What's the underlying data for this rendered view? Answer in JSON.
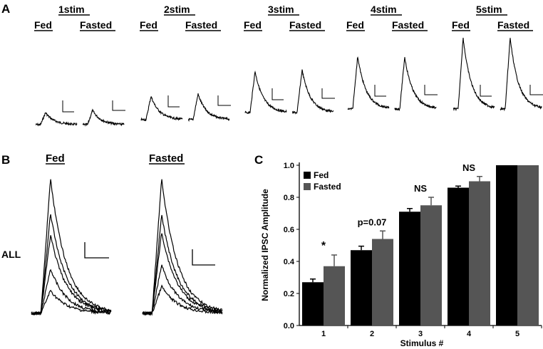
{
  "panels": {
    "a": {
      "letter": "A"
    },
    "b": {
      "letter": "B",
      "fed": "Fed",
      "fasted": "Fasted",
      "row_label": "ALL"
    },
    "c": {
      "letter": "C"
    }
  },
  "traces": {
    "groups": [
      {
        "title": "1stim",
        "fed": "Fed",
        "fasted": "Fasted",
        "peak_fed": 0.17,
        "peak_fasted": 0.2
      },
      {
        "title": "2stim",
        "fed": "Fed",
        "fasted": "Fasted",
        "peak_fed": 0.33,
        "peak_fasted": 0.36
      },
      {
        "title": "3stim",
        "fed": "Fed",
        "fasted": "Fasted",
        "peak_fed": 0.58,
        "peak_fasted": 0.6
      },
      {
        "title": "4stim",
        "fed": "Fed",
        "fasted": "Fasted",
        "peak_fed": 0.74,
        "peak_fasted": 0.73
      },
      {
        "title": "5stim",
        "fed": "Fed",
        "fasted": "Fasted",
        "peak_fed": 1.0,
        "peak_fasted": 1.0
      }
    ]
  },
  "chart_data": {
    "type": "bar",
    "title": "",
    "xlabel": "Stimulus #",
    "ylabel": "Normalized IPSC Amplitude",
    "categories": [
      "1",
      "2",
      "3",
      "4",
      "5"
    ],
    "ylim": [
      0,
      1.0
    ],
    "yticks": [
      "0.0",
      "0.2",
      "0.4",
      "0.6",
      "0.8",
      "1.0"
    ],
    "series": [
      {
        "name": "Fed",
        "color": "#000000",
        "values": [
          0.27,
          0.47,
          0.71,
          0.86,
          1.0
        ],
        "errors": [
          0.02,
          0.025,
          0.02,
          0.01,
          0.0
        ]
      },
      {
        "name": "Fasted",
        "color": "#555555",
        "values": [
          0.37,
          0.54,
          0.75,
          0.9,
          1.0
        ],
        "errors": [
          0.07,
          0.05,
          0.05,
          0.03,
          0.0
        ]
      }
    ],
    "annotations": [
      {
        "category": "1",
        "text": "*"
      },
      {
        "category": "2",
        "text": "p=0.07"
      },
      {
        "category": "3",
        "text": "NS"
      },
      {
        "category": "4",
        "text": "NS"
      }
    ],
    "legend": "top-left"
  }
}
